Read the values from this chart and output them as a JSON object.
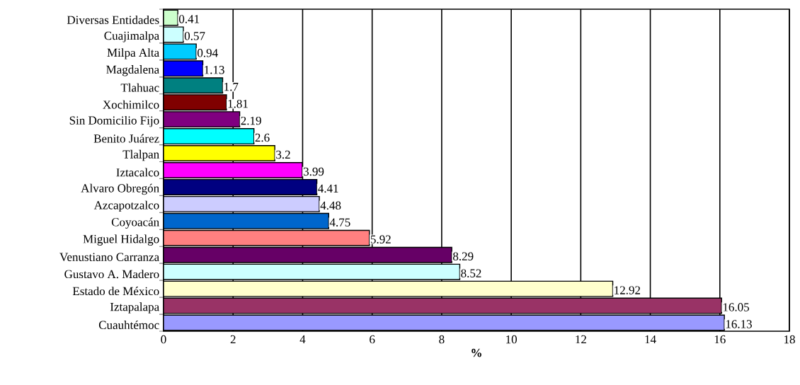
{
  "chart_data": {
    "type": "bar",
    "orientation": "horizontal",
    "xlabel": "%",
    "categories": [
      "Diversas Entidades",
      "Cuajimalpa",
      "Milpa Alta",
      "Magdalena",
      "Tlahuac",
      "Xochimilco",
      "Sin Domicilio Fijo",
      "Benito Juárez",
      "Tlalpan",
      "Iztacalco",
      "Alvaro Obregón",
      "Azcapotzalco",
      "Coyoacán",
      "Miguel Hidalgo",
      "Venustiano Carranza",
      "Gustavo A. Madero",
      "Estado de México",
      "Iztapalapa",
      "Cuauhtémoc"
    ],
    "values": [
      0.41,
      0.57,
      0.94,
      1.13,
      1.7,
      1.81,
      2.19,
      2.6,
      3.2,
      3.99,
      4.41,
      4.48,
      4.75,
      5.92,
      8.29,
      8.52,
      12.92,
      16.05,
      16.13
    ],
    "colors": [
      "#ccffcc",
      "#ccffff",
      "#00ccff",
      "#0000ff",
      "#008080",
      "#800000",
      "#800080",
      "#00ffff",
      "#ffff00",
      "#ff00ff",
      "#000080",
      "#ccccff",
      "#0066cc",
      "#ff8080",
      "#660066",
      "#ccffff",
      "#ffffcc",
      "#993366",
      "#9999ff"
    ],
    "xlim": [
      0,
      18
    ],
    "xticks": [
      0,
      2,
      4,
      6,
      8,
      10,
      12,
      14,
      16,
      18
    ],
    "grid": "x",
    "data_labels": true
  }
}
